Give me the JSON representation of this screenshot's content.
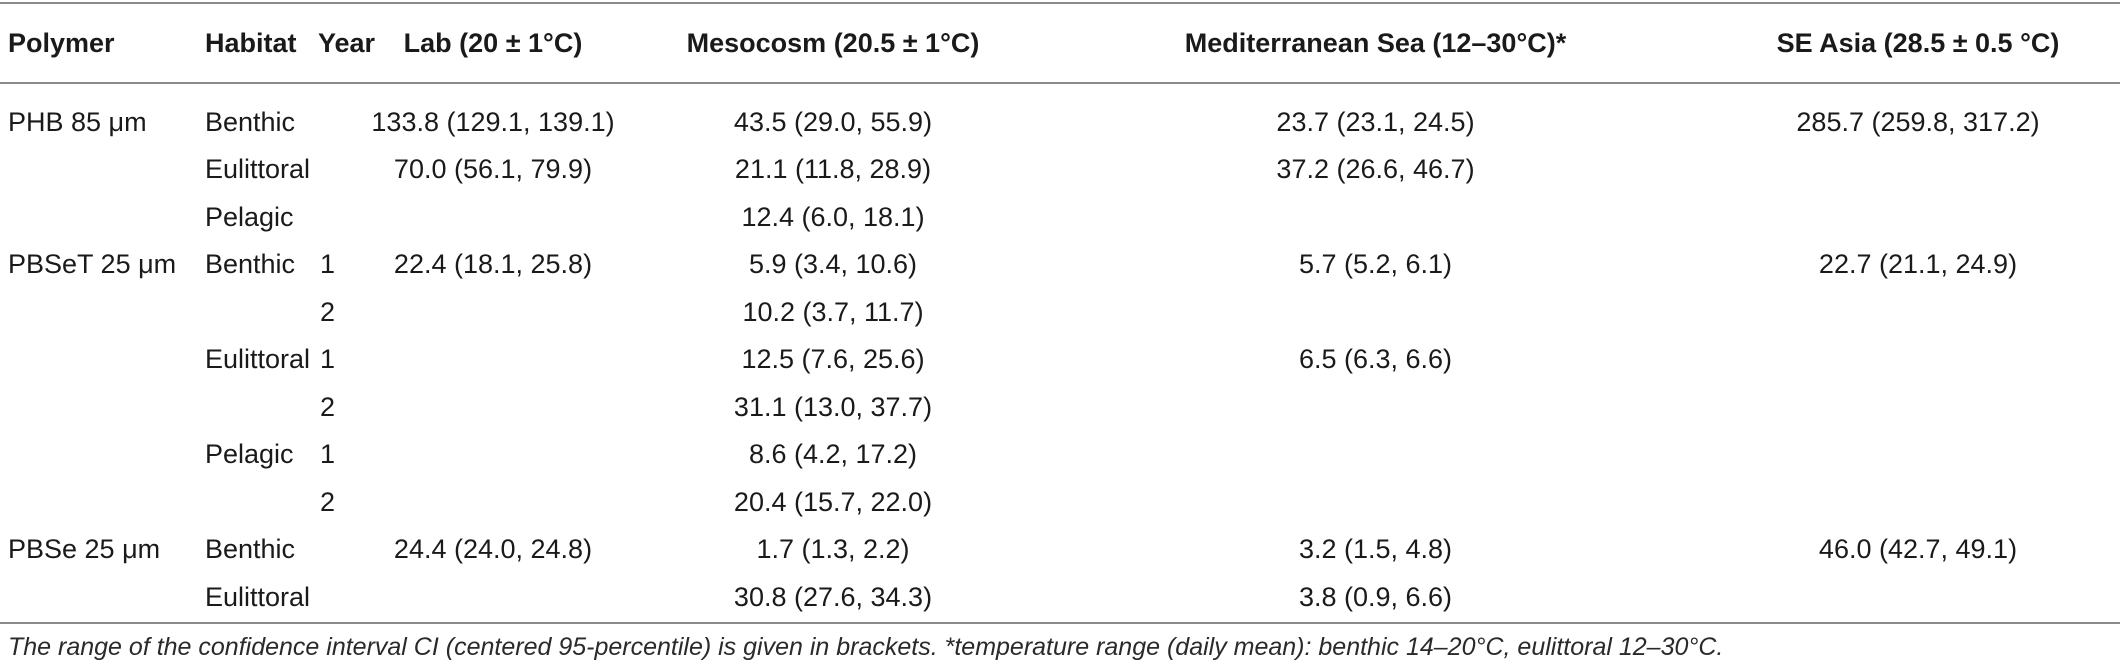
{
  "table": {
    "headers": [
      "Polymer",
      "Habitat",
      "Year",
      "Lab (20 ± 1°C)",
      "Mesocosm (20.5 ± 1°C)",
      "Mediterranean Sea (12–30°C)*",
      "SE Asia (28.5 ± 0.5 °C)"
    ],
    "rows": [
      [
        "PHB 85 μm",
        "Benthic",
        "",
        "133.8 (129.1, 139.1)",
        "43.5 (29.0, 55.9)",
        "23.7 (23.1, 24.5)",
        "285.7 (259.8, 317.2)"
      ],
      [
        "",
        "Eulittoral",
        "",
        "70.0 (56.1, 79.9)",
        "21.1 (11.8, 28.9)",
        "37.2 (26.6, 46.7)",
        ""
      ],
      [
        "",
        "Pelagic",
        "",
        "",
        "12.4 (6.0, 18.1)",
        "",
        ""
      ],
      [
        "PBSeT 25 μm",
        "Benthic",
        "1",
        "22.4 (18.1, 25.8)",
        "5.9 (3.4, 10.6)",
        "5.7 (5.2, 6.1)",
        "22.7 (21.1, 24.9)"
      ],
      [
        "",
        "",
        "2",
        "",
        "10.2 (3.7, 11.7)",
        "",
        ""
      ],
      [
        "",
        "Eulittoral",
        "1",
        "",
        "12.5 (7.6, 25.6)",
        "6.5 (6.3, 6.6)",
        ""
      ],
      [
        "",
        "",
        "2",
        "",
        "31.1 (13.0, 37.7)",
        "",
        ""
      ],
      [
        "",
        "Pelagic",
        "1",
        "",
        "8.6 (4.2, 17.2)",
        "",
        ""
      ],
      [
        "",
        "",
        "2",
        "",
        "20.4 (15.7, 22.0)",
        "",
        ""
      ],
      [
        "PBSe 25 μm",
        "Benthic",
        "",
        "24.4 (24.0, 24.8)",
        "1.7 (1.3, 2.2)",
        "3.2 (1.5, 4.8)",
        "46.0 (42.7, 49.1)"
      ],
      [
        "",
        "Eulittoral",
        "",
        "",
        "30.8 (27.6, 34.3)",
        "3.8 (0.9, 6.6)",
        ""
      ]
    ]
  },
  "footnote": "The range of the confidence interval CI (centered 95-percentile) is given in brackets. *temperature range (daily mean): benthic 14–20°C, eulittoral 12–30°C."
}
